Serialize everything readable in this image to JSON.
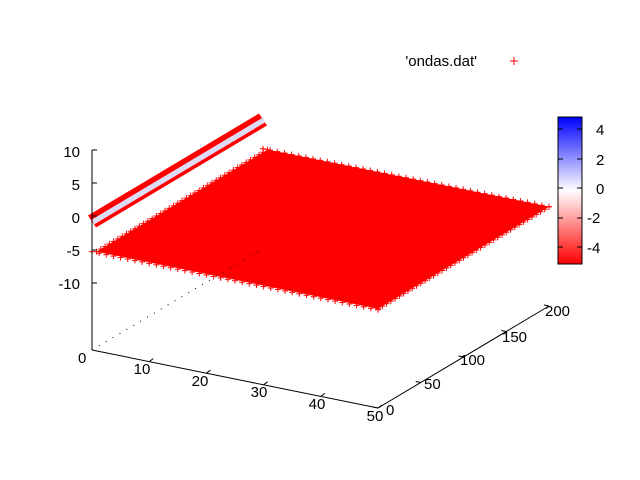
{
  "chart_data": {
    "type": "scatter",
    "subtype": "3d-surface-points",
    "title": "",
    "series": [
      {
        "name": "'ondas.dat'",
        "marker": "+",
        "color": "#ff0000"
      }
    ],
    "x_axis": {
      "label": "",
      "range": [
        0,
        50
      ],
      "ticks": [
        "10",
        "20",
        "30",
        "40",
        "50"
      ]
    },
    "y_axis": {
      "label": "",
      "range": [
        0,
        200
      ],
      "ticks": [
        "0",
        "50",
        "100",
        "150",
        "200"
      ]
    },
    "z_axis": {
      "label": "",
      "range": [
        -10,
        10
      ],
      "ticks": [
        "10",
        "5",
        "0",
        "-5",
        "-10"
      ]
    },
    "z_origin_label": "0",
    "surface": {
      "z_value_bulk": -5,
      "band_at_x": 0,
      "band_z_value": 0
    },
    "colorbar": {
      "range": [
        -5,
        5
      ],
      "ticks": [
        "4",
        "2",
        "0",
        "-2",
        "-4"
      ],
      "colors": {
        "high": "#0000ff",
        "mid": "#ffffff",
        "low": "#ff0000"
      }
    },
    "legend_position": "top-right",
    "grid": false
  }
}
